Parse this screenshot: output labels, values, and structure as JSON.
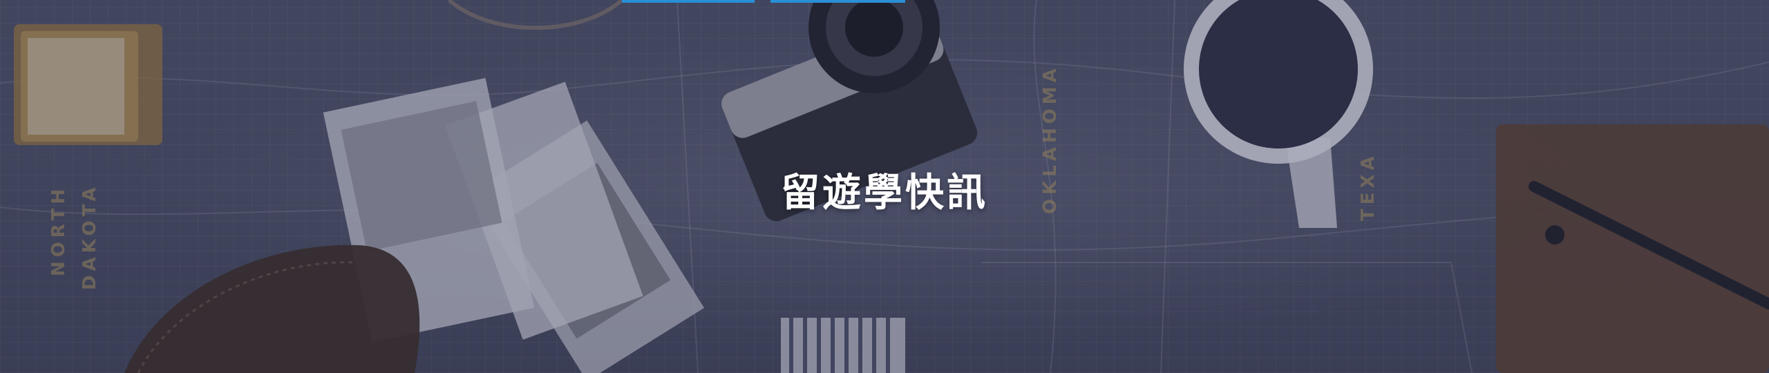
{
  "banner": {
    "title": "留遊學快訊"
  },
  "map_labels": {
    "north": "NORTH",
    "dakota": "DAKOTA",
    "oklahoma": "OKLAHOMA",
    "texas": "TEXA"
  },
  "colors": {
    "overlay": "#303452",
    "accent": "#2a8fd6",
    "title_text": "#ffffff"
  }
}
